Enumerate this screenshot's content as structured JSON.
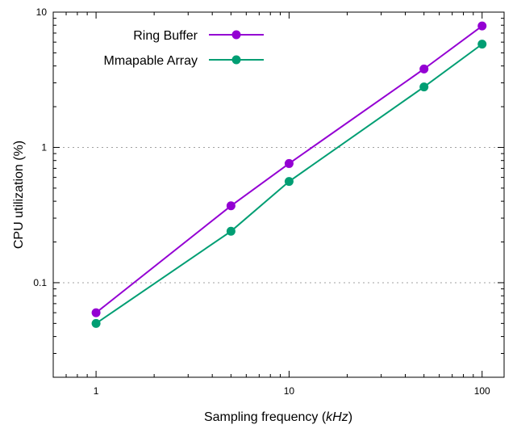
{
  "chart_data": {
    "type": "line",
    "title": "",
    "xlabel": {
      "main": "Sampling frequency (",
      "italic": "kHz",
      "end": ")"
    },
    "ylabel": "CPU utilization (%)",
    "x_scale": "log",
    "y_scale": "log",
    "xlim": [
      0.6,
      130
    ],
    "ylim": [
      0.02,
      10
    ],
    "x_ticks": [
      {
        "value": 1,
        "label": "1"
      },
      {
        "value": 10,
        "label": "10"
      },
      {
        "value": 100,
        "label": "100"
      }
    ],
    "y_ticks": [
      {
        "value": 0.1,
        "label": "0.1"
      },
      {
        "value": 1,
        "label": "1"
      },
      {
        "value": 10,
        "label": "10"
      }
    ],
    "grid": "horizontal dotted at major y ticks",
    "legend_position": "top-left",
    "series": [
      {
        "name": "Ring Buffer",
        "color": "#9400d3",
        "x": [
          1,
          5,
          10,
          50,
          100
        ],
        "y": [
          0.06,
          0.37,
          0.76,
          3.8,
          7.9
        ]
      },
      {
        "name": "Mmapable Array",
        "color": "#009e73",
        "x": [
          1,
          5,
          10,
          50,
          100
        ],
        "y": [
          0.05,
          0.24,
          0.56,
          2.8,
          5.8
        ]
      }
    ]
  }
}
